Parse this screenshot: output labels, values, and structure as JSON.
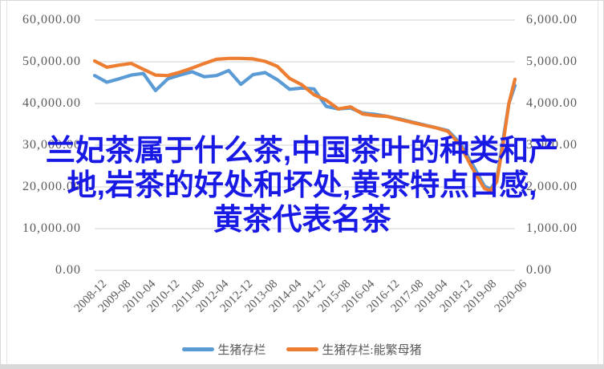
{
  "overlay_title": {
    "full_text": "兰妃茶属于什么茶,中国茶叶的种类和产地,岩茶的好处和坏处,黄茶特点口感,黄茶代表名茶",
    "lines": [
      "兰妃茶属于什么茶,中国茶叶的种类和产",
      "地,岩茶的好处和坏处,黄茶特点口感,",
      "黄茶代表名茶"
    ],
    "color": "#1919e6"
  },
  "legend": {
    "items": [
      {
        "label": "生猪存栏",
        "color": "#5B9BD5"
      },
      {
        "label": "生猪存栏:能繁母猪",
        "color": "#ED7D31"
      }
    ]
  },
  "chart_data": {
    "type": "line",
    "title": "",
    "grid": true,
    "legend_position": "bottom",
    "colors": {
      "grid": "#d9d9d9",
      "axis_text": "#595959"
    },
    "left_axis": {
      "min": 0,
      "max": 60000,
      "ticks": [
        "60,000.00",
        "50,000.00",
        "40,000.00",
        "30,000.00",
        "20,000.00",
        "10,000.00",
        "0.00"
      ]
    },
    "right_axis": {
      "min": 0,
      "max": 6000,
      "ticks": [
        "6,000.00",
        "5,000.00",
        "4,000.00",
        "3,000.00",
        "2,000.00",
        "1,000.00",
        "0.00"
      ]
    },
    "x_ticks": [
      "2008-12",
      "2009-08",
      "2010-04",
      "2010-12",
      "2011-08",
      "2012-04",
      "2012-12",
      "2013-08",
      "2014-04",
      "2014-12",
      "2015-08",
      "2016-04",
      "2016-12",
      "2017-08",
      "2018-04",
      "2018-12",
      "2019-08",
      "2020-06"
    ],
    "x": [
      "2008-12",
      "2009-04",
      "2009-08",
      "2009-12",
      "2010-04",
      "2010-08",
      "2010-12",
      "2011-04",
      "2011-08",
      "2011-12",
      "2012-04",
      "2012-08",
      "2012-12",
      "2013-04",
      "2013-08",
      "2013-12",
      "2014-04",
      "2014-08",
      "2014-12",
      "2015-04",
      "2015-08",
      "2015-12",
      "2016-04",
      "2016-08",
      "2016-12",
      "2017-04",
      "2017-08",
      "2017-12",
      "2018-04",
      "2018-08",
      "2018-12",
      "2019-04",
      "2019-08",
      "2019-10",
      "2019-12",
      "2020-02",
      "2020-04",
      "2020-06"
    ],
    "series": [
      {
        "name": "生猪存栏",
        "axis": "left",
        "color": "#5B9BD5",
        "values": [
          46700,
          45100,
          45900,
          46800,
          47200,
          43100,
          45900,
          46800,
          47600,
          46400,
          46700,
          47900,
          44600,
          46900,
          47400,
          45700,
          43400,
          43700,
          43500,
          39300,
          38700,
          38900,
          37700,
          37400,
          36900,
          36300,
          35600,
          34900,
          34200,
          33500,
          30500,
          25500,
          20200,
          19500,
          21700,
          30800,
          40000,
          44300
        ]
      },
      {
        "name": "生猪存栏:能繁母猪",
        "axis": "right",
        "color": "#ED7D31",
        "values": [
          5020,
          4870,
          4920,
          4960,
          4820,
          4680,
          4670,
          4750,
          4850,
          4960,
          5060,
          5080,
          5080,
          5070,
          5010,
          4890,
          4600,
          4450,
          4210,
          4080,
          3870,
          3920,
          3750,
          3710,
          3690,
          3620,
          3550,
          3480,
          3420,
          3330,
          3000,
          2450,
          1960,
          1910,
          2120,
          2990,
          4000,
          4580
        ]
      }
    ]
  }
}
